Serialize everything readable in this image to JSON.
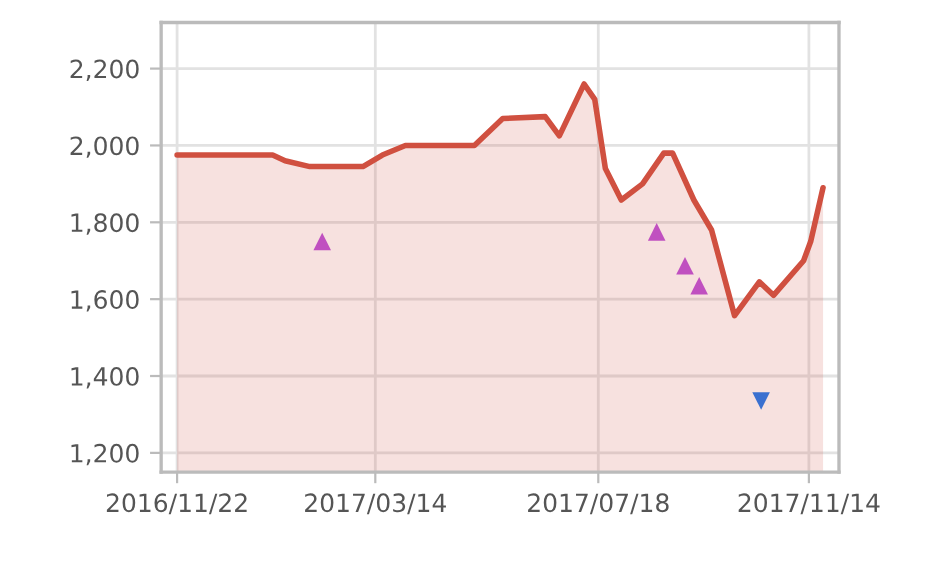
{
  "chart_data": {
    "type": "area",
    "xlim": [
      "2016-11-13",
      "2017-12-01"
    ],
    "xticks": [
      {
        "value": "2016-11-22",
        "label": "2016/11/22"
      },
      {
        "value": "2017-03-14",
        "label": "2017/03/14"
      },
      {
        "value": "2017-07-18",
        "label": "2017/07/18"
      },
      {
        "value": "2017-11-14",
        "label": "2017/11/14"
      }
    ],
    "ylim": [
      1150,
      2320
    ],
    "yticks": [
      {
        "value": 1200,
        "label": "1,200"
      },
      {
        "value": 1400,
        "label": "1,400"
      },
      {
        "value": 1600,
        "label": "1,600"
      },
      {
        "value": 1800,
        "label": "1,800"
      },
      {
        "value": 2000,
        "label": "2,000"
      },
      {
        "value": 2200,
        "label": "2,200"
      }
    ],
    "grid": true,
    "series": [
      {
        "color": "#d05040",
        "x": [
          "2016-11-22",
          "2017-01-15",
          "2017-01-22",
          "2017-02-05",
          "2017-03-07",
          "2017-03-18",
          "2017-03-31",
          "2017-05-09",
          "2017-05-25",
          "2017-06-18",
          "2017-06-26",
          "2017-07-10",
          "2017-07-16",
          "2017-07-22",
          "2017-07-31",
          "2017-08-12",
          "2017-08-24",
          "2017-08-29",
          "2017-09-10",
          "2017-09-20",
          "2017-10-03",
          "2017-10-17",
          "2017-10-25",
          "2017-11-11",
          "2017-11-15",
          "2017-11-22"
        ],
        "values": [
          1975,
          1975,
          1960,
          1945,
          1945,
          1975,
          2000,
          2000,
          2070,
          2075,
          2025,
          2160,
          2120,
          1940,
          1858,
          1900,
          1980,
          1980,
          1858,
          1780,
          1557,
          1645,
          1610,
          1700,
          1750,
          1890
        ]
      },
      {
        "type": "scatter",
        "marker": "triangle",
        "color": "#c050c0",
        "x": [
          "2017-02-12",
          "2017-08-20",
          "2017-09-05",
          "2017-09-13"
        ],
        "values": [
          1750,
          1775,
          1687,
          1635
        ]
      },
      {
        "type": "scatter",
        "marker": "triangle_down",
        "color": "#3a70d0",
        "x": [
          "2017-10-18"
        ],
        "values": [
          1335
        ]
      }
    ]
  }
}
